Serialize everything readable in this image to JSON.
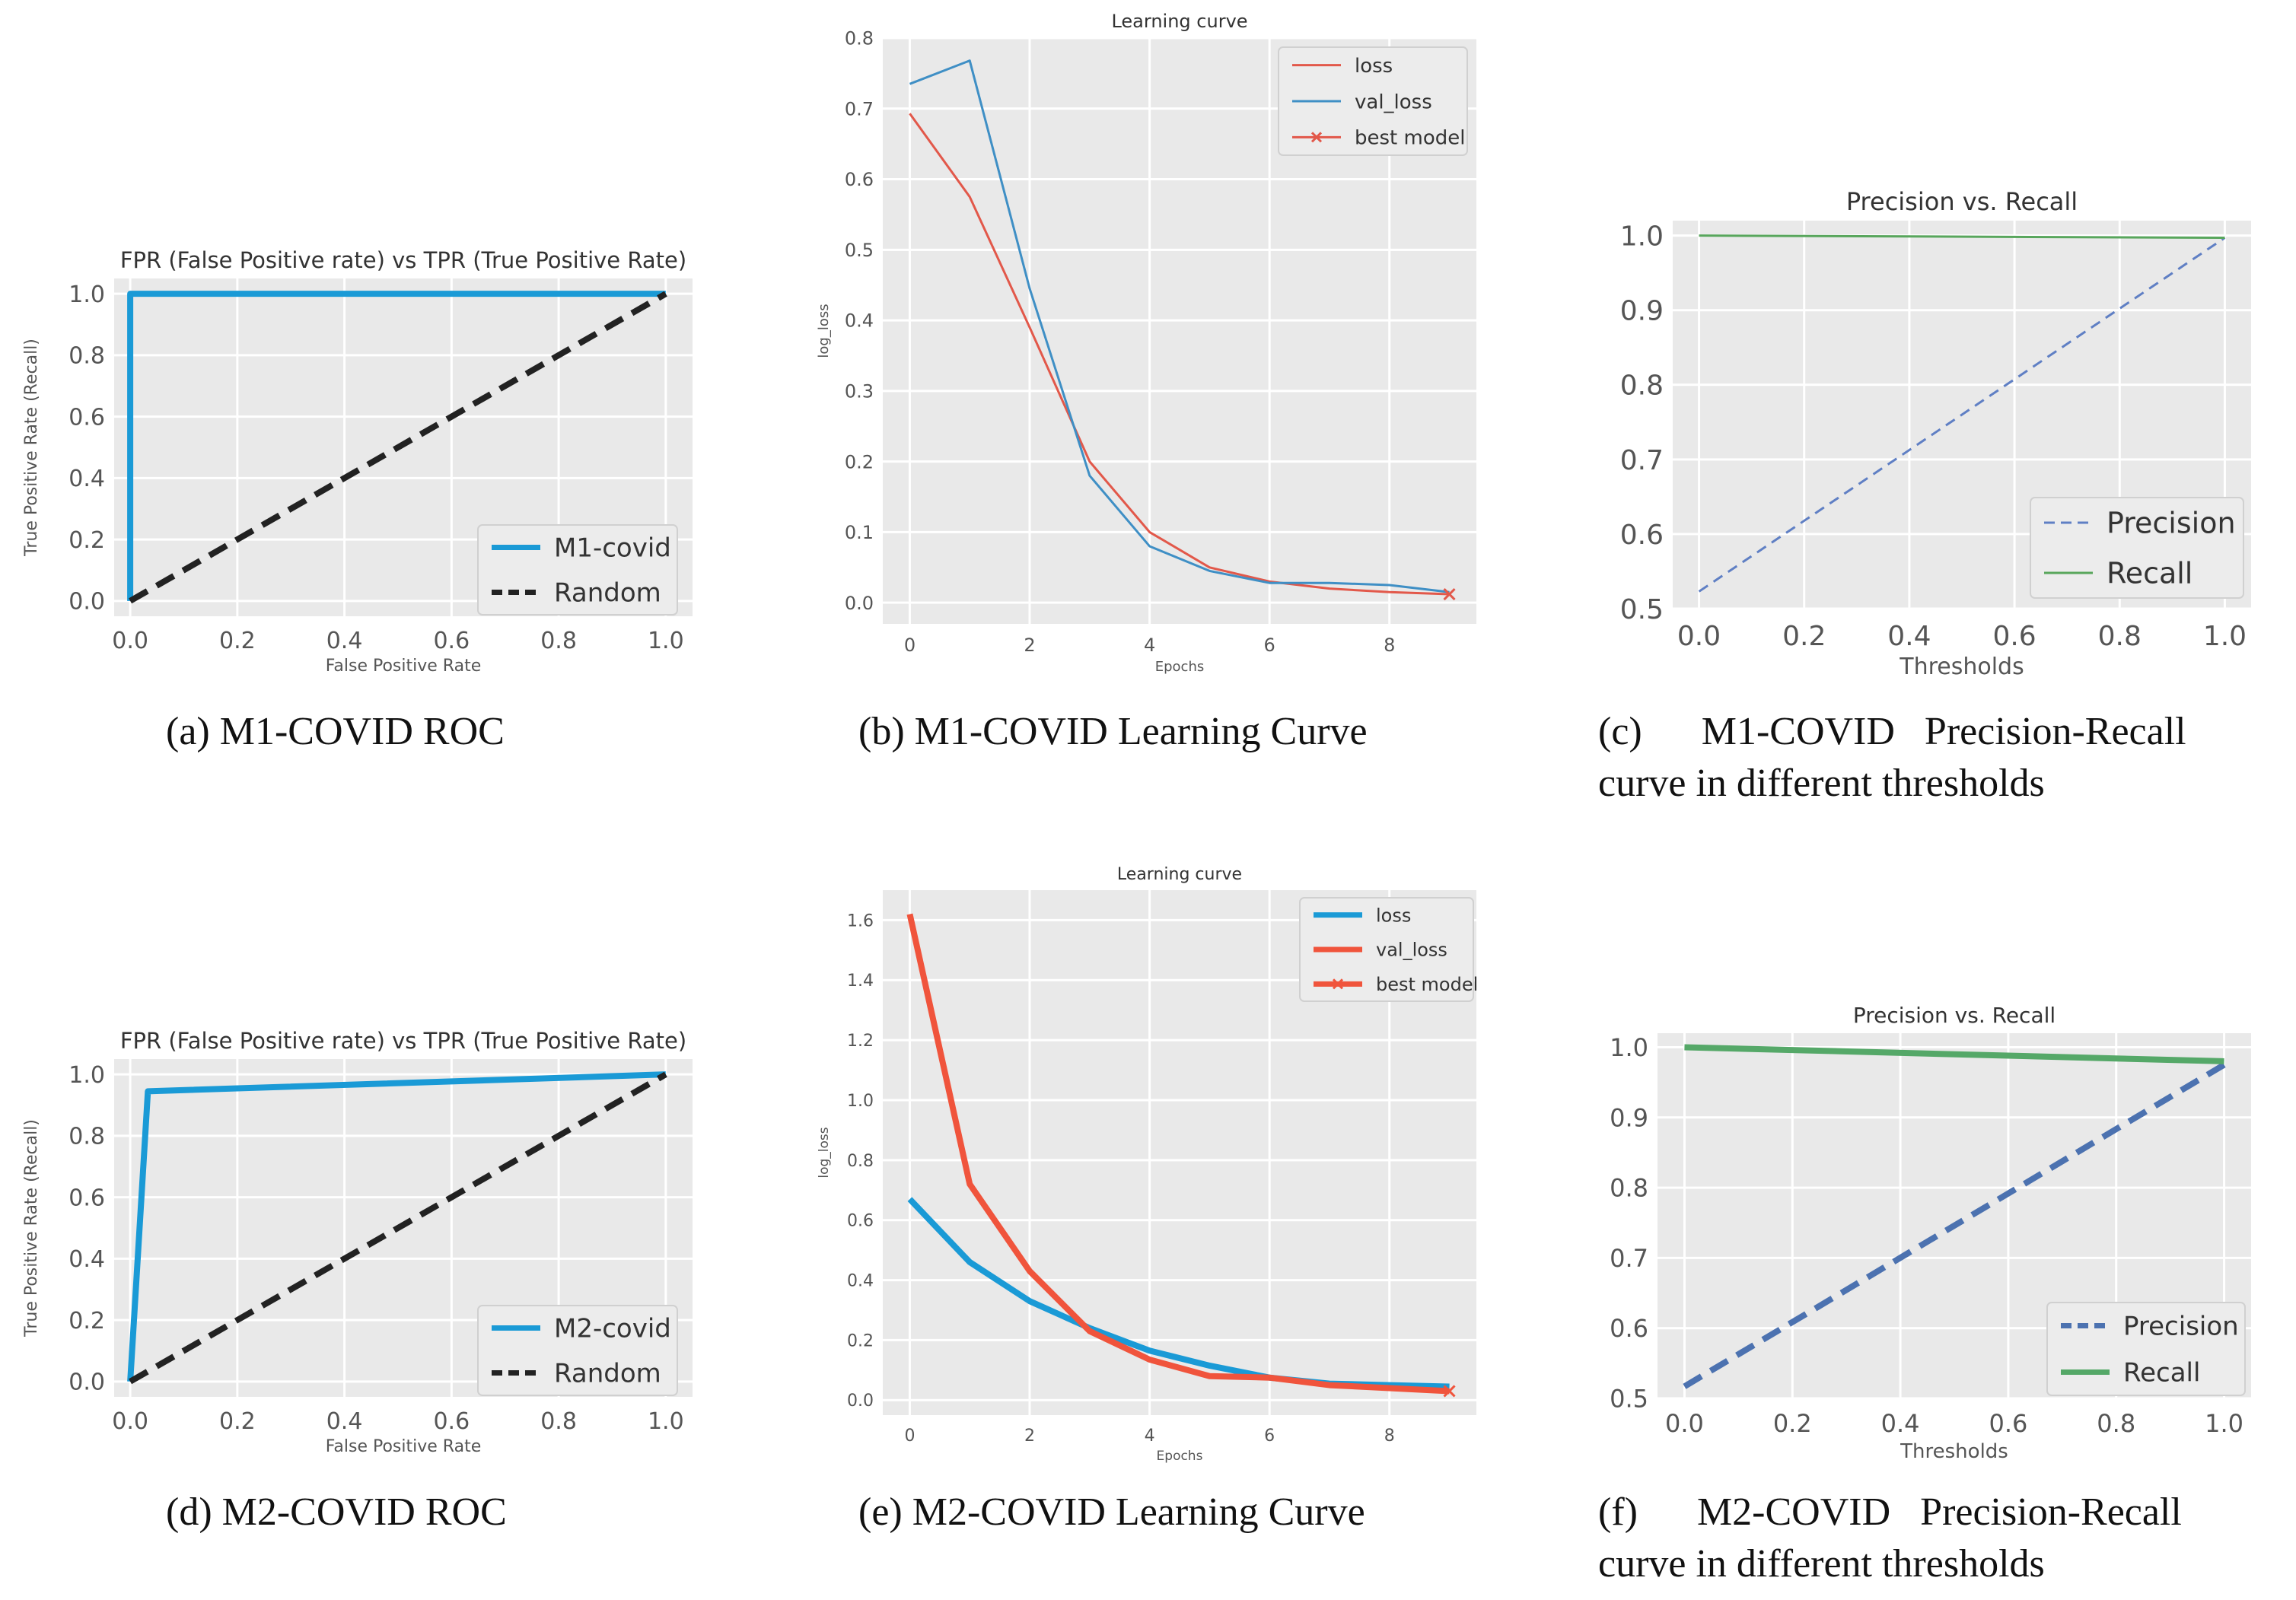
{
  "captions": {
    "a": "(a) M1-COVID ROC",
    "b": "(b) M1-COVID Learning Curve",
    "c_line1": "(c)      M1-COVID   Precision-Recall",
    "c_line2": "curve in different thresholds",
    "d": "(d) M2-COVID ROC",
    "e": "(e) M2-COVID Learning Curve",
    "f_line1": "(f)      M2-COVID   Precision-Recall",
    "f_line2": "curve in different thresholds"
  },
  "chart_data": [
    {
      "id": "a",
      "type": "line",
      "title": "FPR (False Positive rate) vs TPR (True Positive Rate)",
      "xlabel": "False Positive Rate",
      "ylabel": "True Positive Rate (Recall)",
      "xlim": [
        -0.03,
        1.05
      ],
      "ylim": [
        -0.05,
        1.05
      ],
      "xticks": [
        0.0,
        0.2,
        0.4,
        0.6,
        0.8,
        1.0
      ],
      "xtick_labels": [
        "0.0",
        "0.2",
        "0.4",
        "0.6",
        "0.8",
        "1.0"
      ],
      "yticks": [
        0.0,
        0.2,
        0.4,
        0.6,
        0.8,
        1.0
      ],
      "ytick_labels": [
        "0.0",
        "0.2",
        "0.4",
        "0.6",
        "0.8",
        "1.0"
      ],
      "legend_position": "lower-right",
      "series": [
        {
          "name": "M1-covid",
          "color": "#1a9ad6",
          "dash": "solid",
          "width": "thick",
          "x": [
            0.0,
            0.0,
            1.0
          ],
          "y": [
            0.0,
            1.0,
            1.0
          ]
        },
        {
          "name": "Random",
          "color": "#222222",
          "dash": "dashed",
          "width": "thick",
          "x": [
            0.0,
            1.0
          ],
          "y": [
            0.0,
            1.0
          ]
        }
      ]
    },
    {
      "id": "b",
      "type": "line",
      "title": "Learning curve",
      "xlabel": "Epochs",
      "ylabel": "log_loss",
      "xlim": [
        -0.45,
        9.45
      ],
      "ylim": [
        -0.03,
        0.8
      ],
      "xticks": [
        0,
        2,
        4,
        6,
        8
      ],
      "xtick_labels": [
        "0",
        "2",
        "4",
        "6",
        "8"
      ],
      "yticks": [
        0.0,
        0.1,
        0.2,
        0.3,
        0.4,
        0.5,
        0.6,
        0.7,
        0.8
      ],
      "ytick_labels": [
        "0.0",
        "0.1",
        "0.2",
        "0.3",
        "0.4",
        "0.5",
        "0.6",
        "0.7",
        "0.8"
      ],
      "legend_position": "upper-right",
      "series": [
        {
          "name": "loss",
          "color": "#e2584a",
          "dash": "solid",
          "width": "thin",
          "x": [
            0,
            1,
            2,
            3,
            4,
            5,
            6,
            7,
            8,
            9
          ],
          "y": [
            0.693,
            0.575,
            0.39,
            0.2,
            0.1,
            0.05,
            0.03,
            0.02,
            0.015,
            0.012
          ]
        },
        {
          "name": "val_loss",
          "color": "#3f8fc5",
          "dash": "solid",
          "width": "thin",
          "x": [
            0,
            1,
            2,
            3,
            4,
            5,
            6,
            7,
            8,
            9
          ],
          "y": [
            0.735,
            0.768,
            0.445,
            0.18,
            0.08,
            0.045,
            0.028,
            0.028,
            0.025,
            0.015
          ]
        },
        {
          "name": "best model",
          "color": "#e2584a",
          "dash": "solid",
          "width": "thin",
          "marker": "x",
          "x": [
            9
          ],
          "y": [
            0.012
          ]
        }
      ]
    },
    {
      "id": "c",
      "type": "line",
      "title": "Precision vs. Recall",
      "xlabel": "Thresholds",
      "ylabel": "",
      "xlim": [
        -0.05,
        1.05
      ],
      "ylim": [
        0.5,
        1.02
      ],
      "xticks": [
        0.0,
        0.2,
        0.4,
        0.6,
        0.8,
        1.0
      ],
      "xtick_labels": [
        "0.0",
        "0.2",
        "0.4",
        "0.6",
        "0.8",
        "1.0"
      ],
      "yticks": [
        0.5,
        0.6,
        0.7,
        0.8,
        0.9,
        1.0
      ],
      "ytick_labels": [
        "0.5",
        "0.6",
        "0.7",
        "0.8",
        "0.9",
        "1.0"
      ],
      "legend_position": "lower-right",
      "series": [
        {
          "name": "Precision",
          "color": "#5f7fc4",
          "dash": "dashed",
          "width": "thin",
          "x": [
            0.0,
            1.0
          ],
          "y": [
            0.523,
            0.997
          ]
        },
        {
          "name": "Recall",
          "color": "#58a65c",
          "dash": "solid",
          "width": "thin",
          "x": [
            0.0,
            1.0
          ],
          "y": [
            1.0,
            0.997
          ]
        }
      ]
    },
    {
      "id": "d",
      "type": "line",
      "title": "FPR (False Positive rate) vs TPR (True Positive Rate)",
      "xlabel": "False Positive Rate",
      "ylabel": "True Positive Rate (Recall)",
      "xlim": [
        -0.03,
        1.05
      ],
      "ylim": [
        -0.05,
        1.05
      ],
      "xticks": [
        0.0,
        0.2,
        0.4,
        0.6,
        0.8,
        1.0
      ],
      "xtick_labels": [
        "0.0",
        "0.2",
        "0.4",
        "0.6",
        "0.8",
        "1.0"
      ],
      "yticks": [
        0.0,
        0.2,
        0.4,
        0.6,
        0.8,
        1.0
      ],
      "ytick_labels": [
        "0.0",
        "0.2",
        "0.4",
        "0.6",
        "0.8",
        "1.0"
      ],
      "legend_position": "lower-right",
      "series": [
        {
          "name": "M2-covid",
          "color": "#1a9ad6",
          "dash": "solid",
          "width": "thick",
          "x": [
            0.0,
            0.033,
            1.0
          ],
          "y": [
            0.0,
            0.945,
            1.0
          ]
        },
        {
          "name": "Random",
          "color": "#222222",
          "dash": "dashed",
          "width": "thick",
          "x": [
            0.0,
            1.0
          ],
          "y": [
            0.0,
            1.0
          ]
        }
      ]
    },
    {
      "id": "e",
      "type": "line",
      "title": "Learning curve",
      "xlabel": "Epochs",
      "ylabel": "log_loss",
      "xlim": [
        -0.45,
        9.45
      ],
      "ylim": [
        -0.05,
        1.7
      ],
      "xticks": [
        0,
        2,
        4,
        6,
        8
      ],
      "xtick_labels": [
        "0",
        "2",
        "4",
        "6",
        "8"
      ],
      "yticks": [
        0.0,
        0.2,
        0.4,
        0.6,
        0.8,
        1.0,
        1.2,
        1.4,
        1.6
      ],
      "ytick_labels": [
        "0.0",
        "0.2",
        "0.4",
        "0.6",
        "0.8",
        "1.0",
        "1.2",
        "1.4",
        "1.6"
      ],
      "legend_position": "upper-right",
      "series": [
        {
          "name": "loss",
          "color": "#1a9ad6",
          "dash": "solid",
          "width": "thick",
          "x": [
            0,
            1,
            2,
            3,
            4,
            5,
            6,
            7,
            8,
            9
          ],
          "y": [
            0.67,
            0.46,
            0.33,
            0.24,
            0.165,
            0.115,
            0.075,
            0.055,
            0.05,
            0.045
          ]
        },
        {
          "name": "val_loss",
          "color": "#f0543c",
          "dash": "solid",
          "width": "thick",
          "x": [
            0,
            1,
            2,
            3,
            4,
            5,
            6,
            7,
            8,
            9
          ],
          "y": [
            1.62,
            0.72,
            0.43,
            0.23,
            0.135,
            0.08,
            0.075,
            0.05,
            0.04,
            0.03
          ]
        },
        {
          "name": "best model",
          "color": "#f0543c",
          "dash": "solid",
          "width": "thick",
          "marker": "x",
          "x": [
            9
          ],
          "y": [
            0.03
          ]
        }
      ]
    },
    {
      "id": "f",
      "type": "line",
      "title": "Precision vs. Recall",
      "xlabel": "Thresholds",
      "ylabel": "",
      "xlim": [
        -0.05,
        1.05
      ],
      "ylim": [
        0.5,
        1.02
      ],
      "xticks": [
        0.0,
        0.2,
        0.4,
        0.6,
        0.8,
        1.0
      ],
      "xtick_labels": [
        "0.0",
        "0.2",
        "0.4",
        "0.6",
        "0.8",
        "1.0"
      ],
      "yticks": [
        0.5,
        0.6,
        0.7,
        0.8,
        0.9,
        1.0
      ],
      "ytick_labels": [
        "0.5",
        "0.6",
        "0.7",
        "0.8",
        "0.9",
        "1.0"
      ],
      "legend_position": "lower-right",
      "series": [
        {
          "name": "Precision",
          "color": "#4c72b0",
          "dash": "dashed",
          "width": "thick",
          "x": [
            0.0,
            1.0
          ],
          "y": [
            0.517,
            0.975
          ]
        },
        {
          "name": "Recall",
          "color": "#55a868",
          "dash": "solid",
          "width": "thick",
          "x": [
            0.0,
            1.0
          ],
          "y": [
            1.0,
            0.98
          ]
        }
      ]
    }
  ]
}
